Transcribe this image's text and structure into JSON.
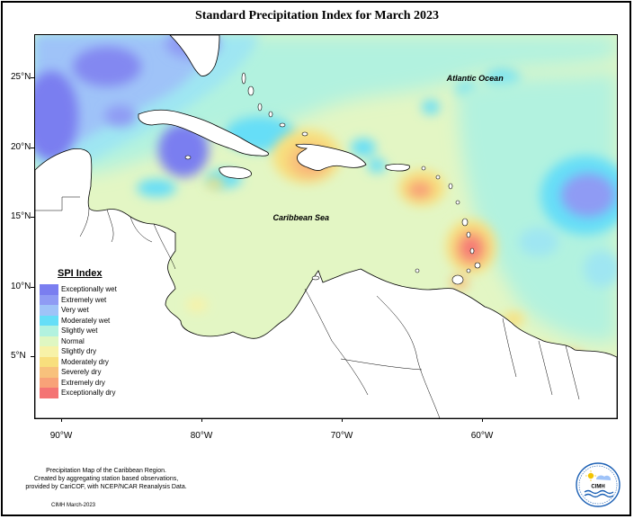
{
  "title": "Standard Precipitation Index for March 2023",
  "map": {
    "lat_labels": [
      {
        "label": "25°N",
        "lat": 25
      },
      {
        "label": "20°N",
        "lat": 20
      },
      {
        "label": "15°N",
        "lat": 15
      },
      {
        "label": "10°N",
        "lat": 10
      },
      {
        "label": "5°N",
        "lat": 5
      }
    ],
    "lon_labels": [
      {
        "label": "90°W",
        "lon": -90
      },
      {
        "label": "80°W",
        "lon": -80
      },
      {
        "label": "70°W",
        "lon": -70
      },
      {
        "label": "60°W",
        "lon": -60
      }
    ],
    "region_labels": [
      {
        "text": "Atlantic Ocean",
        "lon": -60.5,
        "lat": 24.9
      },
      {
        "text": "Caribbean Sea",
        "lon": -72.9,
        "lat": 14.9
      }
    ]
  },
  "legend": {
    "title": "SPI Index",
    "items": [
      {
        "label": "Exceptionally wet",
        "color": "#7a7ef0"
      },
      {
        "label": "Extremely wet",
        "color": "#8f9bf4"
      },
      {
        "label": "Very wet",
        "color": "#9fc3f8"
      },
      {
        "label": "Moderately wet",
        "color": "#66def7"
      },
      {
        "label": "Slightly wet",
        "color": "#b2f2df"
      },
      {
        "label": "Normal",
        "color": "#dff7c2"
      },
      {
        "label": "Slightly dry",
        "color": "#f7f2a8"
      },
      {
        "label": "Moderately dry",
        "color": "#f8df7d"
      },
      {
        "label": "Severely dry",
        "color": "#f8c17c"
      },
      {
        "label": "Extremely dry",
        "color": "#f8a278"
      },
      {
        "label": "Exceptionally dry",
        "color": "#f47474"
      }
    ]
  },
  "footer": {
    "line1": "Precipitation Map of the Caribbean Region.",
    "line2": "Created by aggregating station based observations,",
    "line3": "provided by CariCOF, with NCEP/NCAR Reanalysis Data."
  },
  "credit": "CIMH March-2023",
  "logo": {
    "text": "CIMH"
  }
}
